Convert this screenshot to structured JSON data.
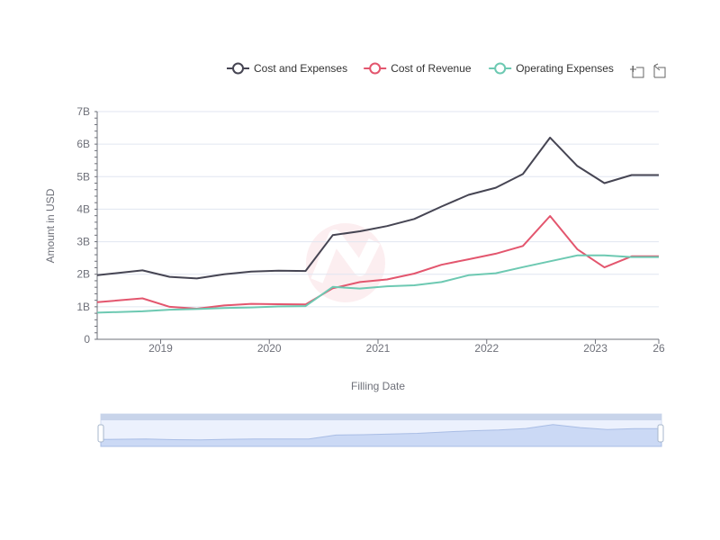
{
  "chart_data": {
    "type": "line",
    "title": "",
    "xlabel": "Filling Date",
    "ylabel": "Amount in USD",
    "ylim": [
      0,
      7
    ],
    "y_unit": "billion USD",
    "y_tick_labels": [
      "0",
      "1B",
      "2B",
      "3B",
      "4B",
      "5B",
      "6B",
      "7B"
    ],
    "x_tick_labels": [
      "2019",
      "2020",
      "2021",
      "2022",
      "2023",
      "26"
    ],
    "x": [
      "2018-06",
      "2018-11",
      "2019-02",
      "2019-05",
      "2019-08",
      "2019-11",
      "2020-02",
      "2020-05",
      "2020-08",
      "2020-11",
      "2021-02",
      "2021-05",
      "2021-08",
      "2021-11",
      "2022-02",
      "2022-05",
      "2022-08",
      "2022-11",
      "2023-02",
      "2023-05",
      "2023-08"
    ],
    "series": [
      {
        "name": "Cost and Expenses",
        "color": "#464553",
        "values": [
          1.97,
          2.12,
          1.92,
          1.87,
          2.0,
          2.08,
          2.11,
          2.1,
          3.2,
          3.32,
          3.48,
          3.7,
          4.08,
          4.44,
          4.66,
          5.08,
          6.2,
          5.33,
          4.8,
          5.05,
          5.05
        ]
      },
      {
        "name": "Cost of Revenue",
        "color": "#e3566e",
        "values": [
          1.14,
          1.26,
          1.0,
          0.94,
          1.04,
          1.09,
          1.08,
          1.07,
          1.57,
          1.76,
          1.84,
          2.02,
          2.29,
          2.46,
          2.63,
          2.87,
          3.79,
          2.77,
          2.21,
          2.55,
          2.55
        ]
      },
      {
        "name": "Operating Expenses",
        "color": "#6dc9b2",
        "values": [
          0.82,
          0.86,
          0.91,
          0.93,
          0.96,
          0.98,
          1.01,
          1.02,
          1.61,
          1.56,
          1.63,
          1.66,
          1.76,
          1.97,
          2.03,
          2.22,
          2.4,
          2.58,
          2.58,
          2.53,
          2.53
        ]
      }
    ],
    "grid": true,
    "legend_position": "top-right"
  },
  "toolbar": {
    "zoom_icon": "zoom-icon",
    "restore_icon": "restore-icon"
  },
  "datazoom": {
    "handle_color": "#a7b7cc",
    "fill_color": "#d4e1fb"
  }
}
